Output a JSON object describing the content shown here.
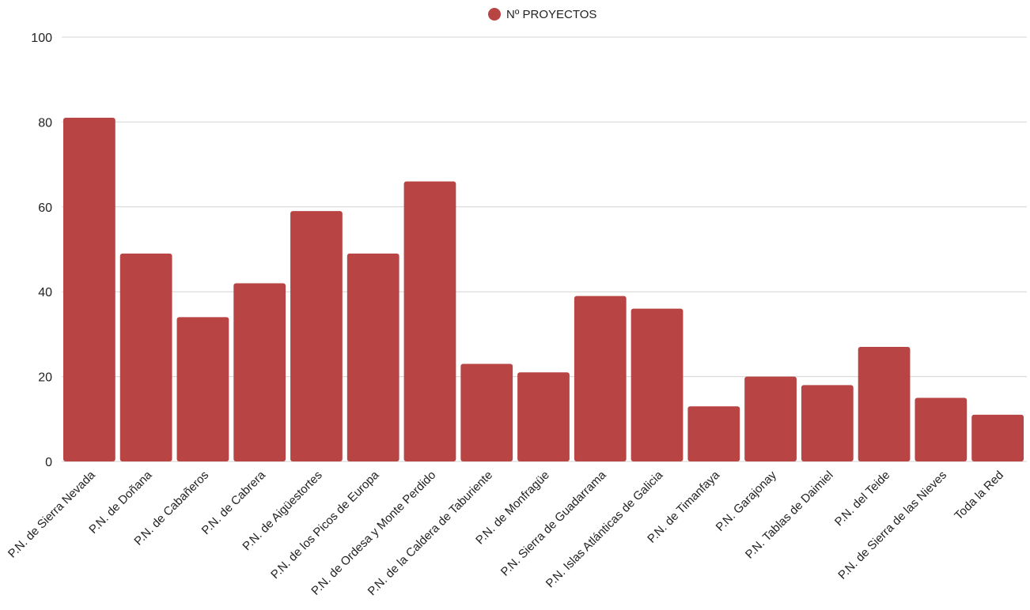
{
  "chart_data": {
    "type": "bar",
    "categories": [
      "P.N. de Sierra Nevada",
      "P.N. de Doñana",
      "P.N. de Cabañeros",
      "P.N. de Cabrera",
      "P.N. de Aigüestortes",
      "P.N. de los Picos de Europa",
      "P.N. de Ordesa y Monte Perdido",
      "P.N. de la Caldera de Taburiente",
      "P.N. de Monfragüe",
      "P.N. Sierra de Guadarrama",
      "P.N. Islas Atlánticas de Galicia",
      "P.N. de Timanfaya",
      "P.N. Garajonay",
      "P.N. Tablas de Daimiel",
      "P.N. del Teide",
      "P.N. de Sierra de las Nieves",
      "Toda la Red"
    ],
    "series": [
      {
        "name": "Nº PROYECTOS",
        "color": "#b94444",
        "values": [
          81,
          49,
          34,
          42,
          59,
          49,
          66,
          23,
          21,
          39,
          36,
          13,
          20,
          18,
          27,
          15,
          11
        ]
      }
    ],
    "title": "",
    "xlabel": "",
    "ylabel": "",
    "ylim": [
      0,
      100
    ],
    "yticks": [
      "0",
      "20",
      "40",
      "60",
      "80",
      "100"
    ],
    "grid": true,
    "legend": "top-center"
  }
}
